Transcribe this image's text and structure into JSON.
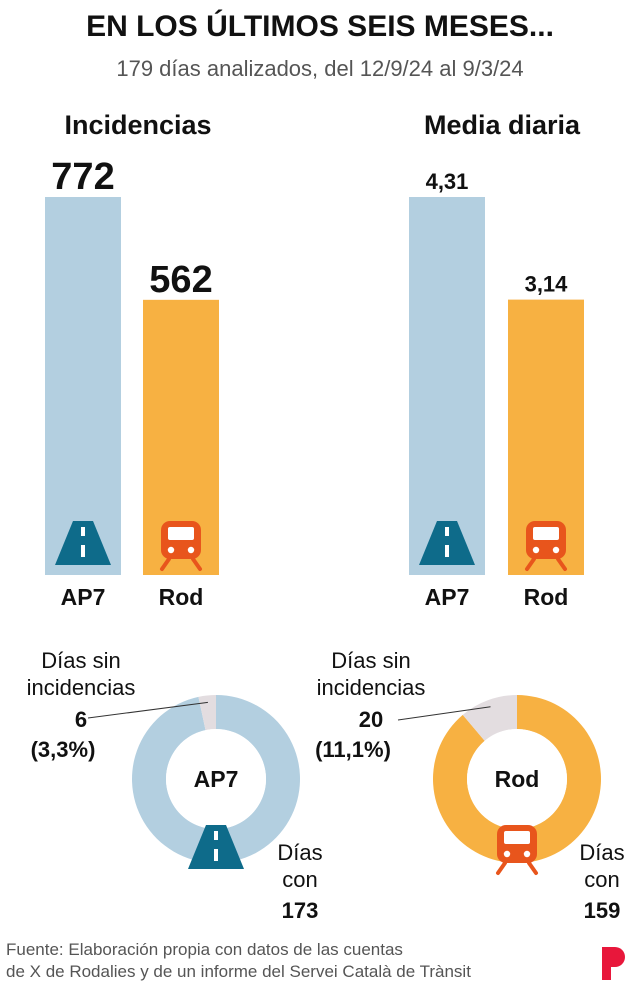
{
  "header": {
    "title": "EN LOS ÚLTIMOS SEIS MESES...",
    "subtitle": "179 días analizados, del 12/9/24 al 9/3/24"
  },
  "colors": {
    "ap7": "#b3cfe0",
    "rod": "#f7b142",
    "ap7_icon": "#0e6b8a",
    "rod_icon": "#e8551c",
    "no_incident": "#e3dde0",
    "brand": "#e8173b"
  },
  "chart_data": [
    {
      "type": "bar",
      "title": "Incidencias",
      "categories": [
        "AP7",
        "Rod"
      ],
      "values": [
        772,
        562
      ],
      "value_labels": [
        "772",
        "562"
      ],
      "icons": [
        "highway-icon",
        "train-icon"
      ]
    },
    {
      "type": "bar",
      "title": "Media diaria",
      "categories": [
        "AP7",
        "Rod"
      ],
      "values": [
        4.31,
        3.14
      ],
      "value_labels": [
        "4,31",
        "3,14"
      ],
      "icons": [
        "highway-icon",
        "train-icon"
      ]
    },
    {
      "type": "pie",
      "center_label": "AP7",
      "icon": "highway-icon",
      "slices": [
        {
          "label_lines": [
            "Días sin",
            "incidencias"
          ],
          "value": 6,
          "value_label": "6",
          "percent_label": "(3,3%)"
        },
        {
          "label_lines": [
            "Días",
            "con"
          ],
          "value": 173,
          "value_label": "173"
        }
      ]
    },
    {
      "type": "pie",
      "center_label": "Rod",
      "icon": "train-icon",
      "slices": [
        {
          "label_lines": [
            "Días sin",
            "incidencias"
          ],
          "value": 20,
          "value_label": "20",
          "percent_label": "(11,1%)"
        },
        {
          "label_lines": [
            "Días",
            "con"
          ],
          "value": 159,
          "value_label": "159"
        }
      ]
    }
  ],
  "footer": {
    "source_line1": "Fuente: Elaboración propia con datos de las cuentas",
    "source_line2": "de X de Rodalies y de un informe del Servei Català de Trànsit",
    "logo_icon": "brand-p-logo-icon"
  }
}
